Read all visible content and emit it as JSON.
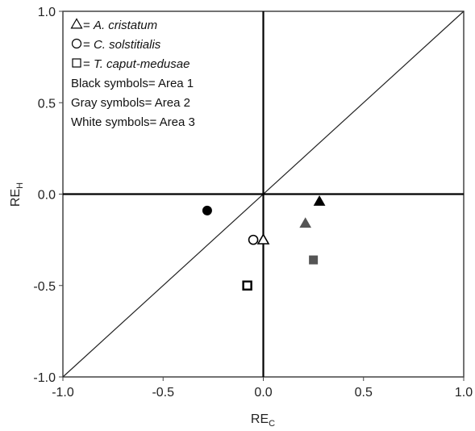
{
  "chart_data": {
    "type": "scatter",
    "xlabel": {
      "main": "RE",
      "sub": "C"
    },
    "ylabel": {
      "main": "RE",
      "sub": "H"
    },
    "xlim": [
      -1.0,
      1.0
    ],
    "ylim": [
      -1.0,
      1.0
    ],
    "x_ticks": [
      "-1.0",
      "-0.5",
      "0.0",
      "0.5",
      "1.0"
    ],
    "y_ticks": [
      "1.0",
      "0.5",
      "0.0",
      "-0.5",
      "-1.0"
    ],
    "x_tick_values": [
      -1.0,
      -0.5,
      0.0,
      0.5,
      1.0
    ],
    "y_tick_values": [
      1.0,
      0.5,
      0.0,
      -0.5,
      -1.0
    ],
    "grid": false,
    "reference_lines": [
      "x = 0",
      "y = 0",
      "y = x"
    ],
    "legend_placement": "top-left",
    "legend": [
      {
        "symbol": "triangle",
        "prefix": " = ",
        "text": "A. cristatum",
        "italic": true
      },
      {
        "symbol": "circle",
        "prefix": " = ",
        "text": "C. solstitialis",
        "italic": true
      },
      {
        "symbol": "square",
        "prefix": " = ",
        "text": "T. caput-medusae",
        "italic": true
      },
      {
        "symbol": "",
        "prefix": "",
        "text": "Black symbols= Area 1",
        "italic": false
      },
      {
        "symbol": "",
        "prefix": "",
        "text": "Gray symbols= Area 2",
        "italic": false
      },
      {
        "symbol": "",
        "prefix": "",
        "text": "White symbols= Area 3",
        "italic": false
      }
    ],
    "colors": {
      "area1": "#000000",
      "area2": "#555555",
      "area3": "#ffffff",
      "outline": "#000000"
    },
    "points": [
      {
        "species": "A. cristatum",
        "area": "Area 1",
        "shape": "triangle",
        "x": 0.28,
        "y": -0.04
      },
      {
        "species": "A. cristatum",
        "area": "Area 2",
        "shape": "triangle",
        "x": 0.21,
        "y": -0.16
      },
      {
        "species": "A. cristatum",
        "area": "Area 3",
        "shape": "triangle",
        "x": 0.0,
        "y": -0.25
      },
      {
        "species": "C. solstitialis",
        "area": "Area 1",
        "shape": "circle",
        "x": -0.28,
        "y": -0.09
      },
      {
        "species": "C. solstitialis",
        "area": "Area 3",
        "shape": "circle",
        "x": -0.05,
        "y": -0.25
      },
      {
        "species": "T. caput-medusae",
        "area": "Area 2",
        "shape": "square",
        "x": 0.25,
        "y": -0.36
      },
      {
        "species": "T. caput-medusae",
        "area": "Area 3",
        "shape": "square",
        "x": -0.08,
        "y": -0.5
      }
    ]
  }
}
